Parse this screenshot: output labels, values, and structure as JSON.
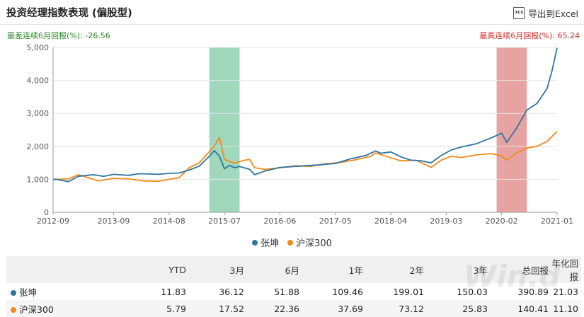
{
  "header": {
    "title": "投资经理指数表现 (偏股型)",
    "export_label": "导出到Excel",
    "export_icon": "xls-file-icon",
    "export_icon_text": "XLS"
  },
  "stats": {
    "min_label": "最差连续6月回报(%):  -26.56",
    "max_label": "最高连续6月回报(%):  65.24"
  },
  "chart_data": {
    "type": "line",
    "x_labels": [
      "2012-09",
      "2013-09",
      "2014-08",
      "2015-07",
      "2016-06",
      "2017-05",
      "2018-04",
      "2019-03",
      "2020-02",
      "2021-01"
    ],
    "ylim": [
      0,
      5000
    ],
    "yticks": [
      0,
      1000,
      2000,
      3000,
      4000,
      5000
    ],
    "ytick_labels": [
      "0",
      "1,000",
      "2,000",
      "3,000",
      "4,000",
      "5,000"
    ],
    "grid": true,
    "legend_position": "bottom",
    "highlight_regions": [
      {
        "start": "2015-04",
        "end": "2015-10",
        "color": "#9fd8bd",
        "meaning": "worst 6-month period"
      },
      {
        "start": "2020-01",
        "end": "2020-07",
        "color": "#e7a2a2",
        "meaning": "best 6-month period"
      }
    ],
    "series": [
      {
        "name": "张坤",
        "color": "#2e75a0",
        "points": [
          [
            "2012-09",
            1000
          ],
          [
            "2012-10",
            990
          ],
          [
            "2012-12",
            930
          ],
          [
            "2013-02",
            1090
          ],
          [
            "2013-05",
            1140
          ],
          [
            "2013-07",
            1090
          ],
          [
            "2013-09",
            1150
          ],
          [
            "2013-12",
            1120
          ],
          [
            "2014-02",
            1170
          ],
          [
            "2014-04",
            1160
          ],
          [
            "2014-06",
            1150
          ],
          [
            "2014-08",
            1180
          ],
          [
            "2014-10",
            1190
          ],
          [
            "2014-12",
            1280
          ],
          [
            "2015-02",
            1400
          ],
          [
            "2015-04",
            1700
          ],
          [
            "2015-05",
            1870
          ],
          [
            "2015-06",
            1700
          ],
          [
            "2015-07",
            1320
          ],
          [
            "2015-08",
            1420
          ],
          [
            "2015-09",
            1350
          ],
          [
            "2015-10",
            1390
          ],
          [
            "2015-12",
            1300
          ],
          [
            "2016-01",
            1140
          ],
          [
            "2016-03",
            1250
          ],
          [
            "2016-06",
            1360
          ],
          [
            "2016-09",
            1390
          ],
          [
            "2016-12",
            1420
          ],
          [
            "2017-02",
            1440
          ],
          [
            "2017-05",
            1480
          ],
          [
            "2017-08",
            1620
          ],
          [
            "2017-11",
            1720
          ],
          [
            "2018-01",
            1860
          ],
          [
            "2018-02",
            1790
          ],
          [
            "2018-04",
            1830
          ],
          [
            "2018-06",
            1680
          ],
          [
            "2018-08",
            1580
          ],
          [
            "2018-10",
            1560
          ],
          [
            "2018-12",
            1500
          ],
          [
            "2019-02",
            1720
          ],
          [
            "2019-04",
            1890
          ],
          [
            "2019-06",
            1980
          ],
          [
            "2019-09",
            2080
          ],
          [
            "2019-12",
            2260
          ],
          [
            "2020-02",
            2400
          ],
          [
            "2020-03",
            2120
          ],
          [
            "2020-05",
            2560
          ],
          [
            "2020-07",
            3100
          ],
          [
            "2020-09",
            3300
          ],
          [
            "2020-11",
            3750
          ],
          [
            "2020-12",
            4300
          ],
          [
            "2021-01",
            4990
          ]
        ]
      },
      {
        "name": "沪深300",
        "color": "#f08a1c",
        "points": [
          [
            "2012-09",
            1000
          ],
          [
            "2012-12",
            1010
          ],
          [
            "2013-02",
            1140
          ],
          [
            "2013-04",
            1050
          ],
          [
            "2013-06",
            950
          ],
          [
            "2013-09",
            1030
          ],
          [
            "2013-12",
            1010
          ],
          [
            "2014-03",
            950
          ],
          [
            "2014-06",
            940
          ],
          [
            "2014-08",
            1000
          ],
          [
            "2014-10",
            1050
          ],
          [
            "2014-12",
            1350
          ],
          [
            "2015-02",
            1500
          ],
          [
            "2015-04",
            1840
          ],
          [
            "2015-05",
            2000
          ],
          [
            "2015-06",
            2270
          ],
          [
            "2015-07",
            1600
          ],
          [
            "2015-09",
            1490
          ],
          [
            "2015-11",
            1580
          ],
          [
            "2015-12",
            1600
          ],
          [
            "2016-01",
            1350
          ],
          [
            "2016-03",
            1300
          ],
          [
            "2016-06",
            1350
          ],
          [
            "2016-09",
            1410
          ],
          [
            "2016-12",
            1390
          ],
          [
            "2017-03",
            1470
          ],
          [
            "2017-06",
            1510
          ],
          [
            "2017-09",
            1590
          ],
          [
            "2017-12",
            1700
          ],
          [
            "2018-01",
            1800
          ],
          [
            "2018-03",
            1700
          ],
          [
            "2018-06",
            1560
          ],
          [
            "2018-09",
            1580
          ],
          [
            "2018-12",
            1360
          ],
          [
            "2019-02",
            1580
          ],
          [
            "2019-04",
            1700
          ],
          [
            "2019-06",
            1660
          ],
          [
            "2019-09",
            1740
          ],
          [
            "2019-12",
            1780
          ],
          [
            "2020-02",
            1710
          ],
          [
            "2020-03",
            1580
          ],
          [
            "2020-05",
            1800
          ],
          [
            "2020-07",
            1950
          ],
          [
            "2020-09",
            2000
          ],
          [
            "2020-11",
            2150
          ],
          [
            "2020-12",
            2300
          ],
          [
            "2021-01",
            2450
          ]
        ]
      }
    ]
  },
  "legend": [
    {
      "label": "张坤",
      "color": "#2e75a0"
    },
    {
      "label": "沪深300",
      "color": "#f08a1c"
    }
  ],
  "table": {
    "columns": [
      "",
      "YTD",
      "3月",
      "6月",
      "1年",
      "2年",
      "3年",
      "总回报",
      "年化回报"
    ],
    "rows": [
      {
        "name": "张坤",
        "color": "#2e75a0",
        "values": [
          "11.83",
          "36.12",
          "51.88",
          "109.46",
          "199.01",
          "150.03",
          "390.89",
          "21.03"
        ]
      },
      {
        "name": "沪深300",
        "color": "#f08a1c",
        "values": [
          "5.79",
          "17.52",
          "22.36",
          "37.69",
          "73.12",
          "25.83",
          "140.41",
          "11.10"
        ]
      }
    ],
    "watermark": "Win.d"
  }
}
